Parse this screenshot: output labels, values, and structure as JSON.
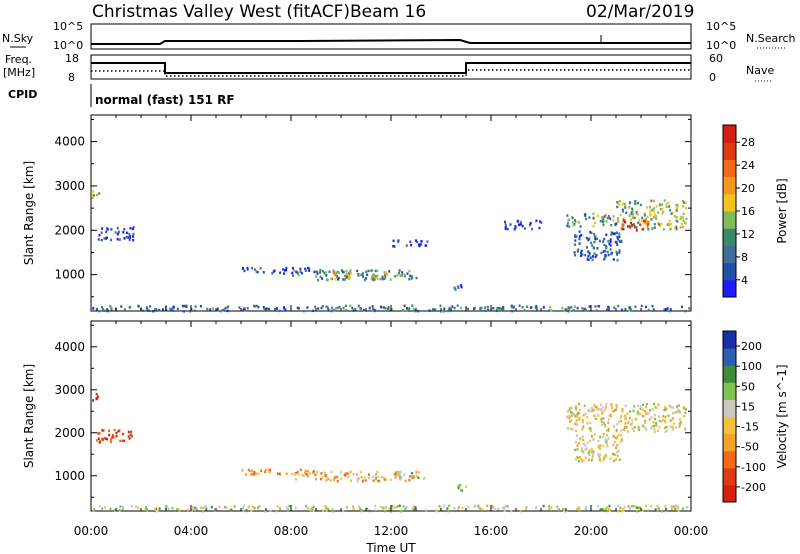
{
  "header": {
    "station": "Christmas Valley West (fitACF)",
    "beam": "Beam 16",
    "date": "02/Mar/2019"
  },
  "status_panels": {
    "nsky_label": "N.Sky",
    "nsky_ticks": [
      "10^5",
      "10^0"
    ],
    "nsearch_label": "N.Search",
    "nsearch_ticks": [
      "10^5",
      "10^0"
    ],
    "freq_label_1": "Freq.",
    "freq_label_2": "[MHz]",
    "freq_ticks": [
      "18",
      "8"
    ],
    "nave_label": "Nave",
    "nave_ticks": [
      "60",
      "0"
    ],
    "cpid_label": "CPID",
    "cpid_text": "normal (fast) 151 RF"
  },
  "colors": {
    "power": [
      "#1c1cff",
      "#1f4fa8",
      "#3f6d98",
      "#3a8a6a",
      "#7dbd5a",
      "#f2c31a",
      "#f39a1c",
      "#f06a1a",
      "#e03a12",
      "#d21f12"
    ],
    "velocity": [
      "#d21f12",
      "#e03a12",
      "#f06a1a",
      "#f3a32a",
      "#f4c13a",
      "#c8c8c0",
      "#7fc24e",
      "#3d8d3a",
      "#2c5fb0",
      "#1a2fa8"
    ]
  },
  "chart_data": [
    {
      "type": "heatmap",
      "panel": "power",
      "ylabel": "Slant Range [km]",
      "xlabel": "Time UT",
      "x_ticks": [
        "00:00",
        "04:00",
        "08:00",
        "12:00",
        "16:00",
        "20:00",
        "00:00"
      ],
      "y_ticks": [
        1000,
        2000,
        3000,
        4000
      ],
      "xlim_hours": [
        0,
        24
      ],
      "ylim_km": [
        180,
        4600
      ],
      "colorbar_label": "Power [dB]",
      "colorbar_ticks": [
        "28",
        "24",
        "20",
        "16",
        "12",
        "8",
        "4"
      ],
      "colorbar_range": [
        0,
        30
      ],
      "regions": [
        {
          "t0": 0.0,
          "t1": 24.0,
          "r0": 200,
          "r1": 330,
          "level": 0.25
        },
        {
          "t0": 6.0,
          "t1": 9.0,
          "r0": 1050,
          "r1": 1180,
          "level": 0.15
        },
        {
          "t0": 8.0,
          "t1": 13.0,
          "r0": 900,
          "r1": 1130,
          "level": 0.3
        },
        {
          "t0": 9.3,
          "t1": 10.4,
          "r0": 920,
          "r1": 1090,
          "level": 0.6
        },
        {
          "t0": 11.2,
          "t1": 12.0,
          "r0": 920,
          "r1": 1080,
          "level": 0.55
        },
        {
          "t0": 14.5,
          "t1": 15.0,
          "r0": 680,
          "r1": 820,
          "level": 0.15
        },
        {
          "t0": 12.0,
          "t1": 13.5,
          "r0": 1650,
          "r1": 1800,
          "level": 0.1
        },
        {
          "t0": 16.5,
          "t1": 18.0,
          "r0": 2050,
          "r1": 2250,
          "level": 0.1
        },
        {
          "t0": 19.3,
          "t1": 21.2,
          "r0": 1350,
          "r1": 2000,
          "level": 0.2
        },
        {
          "t0": 19.0,
          "t1": 21.0,
          "r0": 2100,
          "r1": 2400,
          "level": 0.35
        },
        {
          "t0": 21.0,
          "t1": 23.8,
          "r0": 2050,
          "r1": 2700,
          "level": 0.45
        },
        {
          "t0": 21.2,
          "t1": 22.3,
          "r0": 2000,
          "r1": 2250,
          "level": 0.85
        },
        {
          "t0": 0.0,
          "t1": 0.3,
          "r0": 2750,
          "r1": 2950,
          "level": 0.5
        },
        {
          "t0": 0.2,
          "t1": 1.7,
          "r0": 1800,
          "r1": 2100,
          "level": 0.15
        }
      ]
    },
    {
      "type": "heatmap",
      "panel": "velocity",
      "ylabel": "Slant Range [km]",
      "xlabel": "Time UT",
      "x_ticks": [
        "00:00",
        "04:00",
        "08:00",
        "12:00",
        "16:00",
        "20:00",
        "00:00"
      ],
      "y_ticks": [
        1000,
        2000,
        3000,
        4000
      ],
      "xlim_hours": [
        0,
        24
      ],
      "ylim_km": [
        180,
        4600
      ],
      "colorbar_label": "Velocity [m s^-1]",
      "colorbar_ticks": [
        "200",
        "100",
        "50",
        "15",
        "-15",
        "-50",
        "-100",
        "-200"
      ],
      "colorbar_range": [
        -250,
        250
      ],
      "regions": [
        {
          "t0": 0.0,
          "t1": 24.0,
          "r0": 200,
          "r1": 330,
          "level": 0.55
        },
        {
          "t0": 6.0,
          "t1": 9.0,
          "r0": 1050,
          "r1": 1180,
          "level": 0.35
        },
        {
          "t0": 8.0,
          "t1": 13.0,
          "r0": 900,
          "r1": 1130,
          "level": 0.38
        },
        {
          "t0": 12.0,
          "t1": 13.3,
          "r0": 950,
          "r1": 1120,
          "level": 0.55
        },
        {
          "t0": 14.5,
          "t1": 15.0,
          "r0": 680,
          "r1": 820,
          "level": 0.6
        },
        {
          "t0": 19.3,
          "t1": 21.2,
          "r0": 1350,
          "r1": 2000,
          "level": 0.5
        },
        {
          "t0": 19.0,
          "t1": 23.8,
          "r0": 2050,
          "r1": 2700,
          "level": 0.5
        },
        {
          "t0": 0.0,
          "t1": 0.3,
          "r0": 2750,
          "r1": 2950,
          "level": 0.02
        },
        {
          "t0": 0.2,
          "t1": 1.7,
          "r0": 1800,
          "r1": 2100,
          "level": 0.1
        }
      ]
    }
  ]
}
